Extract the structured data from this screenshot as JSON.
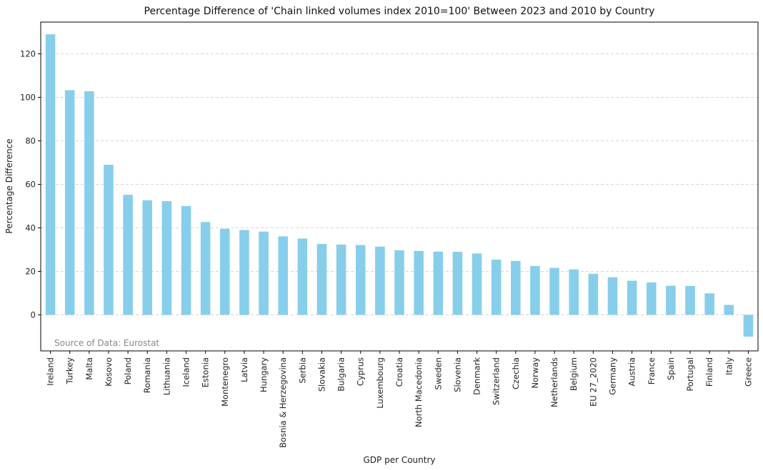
{
  "chart_data": {
    "type": "bar",
    "title": "Percentage Difference of 'Chain linked volumes index 2010=100' Between 2023 and 2010 by Country",
    "xlabel": "GDP per Country",
    "ylabel": "Percentage Difference",
    "annotation": "Source of Data: Eurostat",
    "ylim": [
      -16,
      135
    ],
    "yticks": [
      0,
      20,
      40,
      60,
      80,
      100,
      120
    ],
    "grid": "y-dashed",
    "bar_color": "#87CEEB",
    "categories": [
      "Ireland",
      "Turkey",
      "Malta",
      "Kosovo",
      "Poland",
      "Romania",
      "Lithuania",
      "Iceland",
      "Estonia",
      "Montenegro",
      "Latvia",
      "Hungary",
      "Bosnia & Herzegovina",
      "Serbia",
      "Slovakia",
      "Bulgaria",
      "Cyprus",
      "Luxembourg",
      "Croatia",
      "North Macedonia",
      "Sweden",
      "Slovenia",
      "Denmark",
      "Switzerland",
      "Czechia",
      "Norway",
      "Netherlands",
      "Belgium",
      "EU 27_2020",
      "Germany",
      "Austria",
      "France",
      "Spain",
      "Portugal",
      "Finland",
      "Italy",
      "Greece"
    ],
    "values": [
      129,
      103.3,
      102.8,
      69,
      55.2,
      52.7,
      52.3,
      50,
      42.7,
      39.6,
      39,
      38.3,
      36.1,
      35.1,
      32.6,
      32.3,
      32.1,
      31.4,
      29.7,
      29.4,
      29.1,
      29,
      28.2,
      25.4,
      24.8,
      22.5,
      21.6,
      20.9,
      18.9,
      17.3,
      15.7,
      14.9,
      13.4,
      13.3,
      9.9,
      4.6,
      -10
    ]
  }
}
